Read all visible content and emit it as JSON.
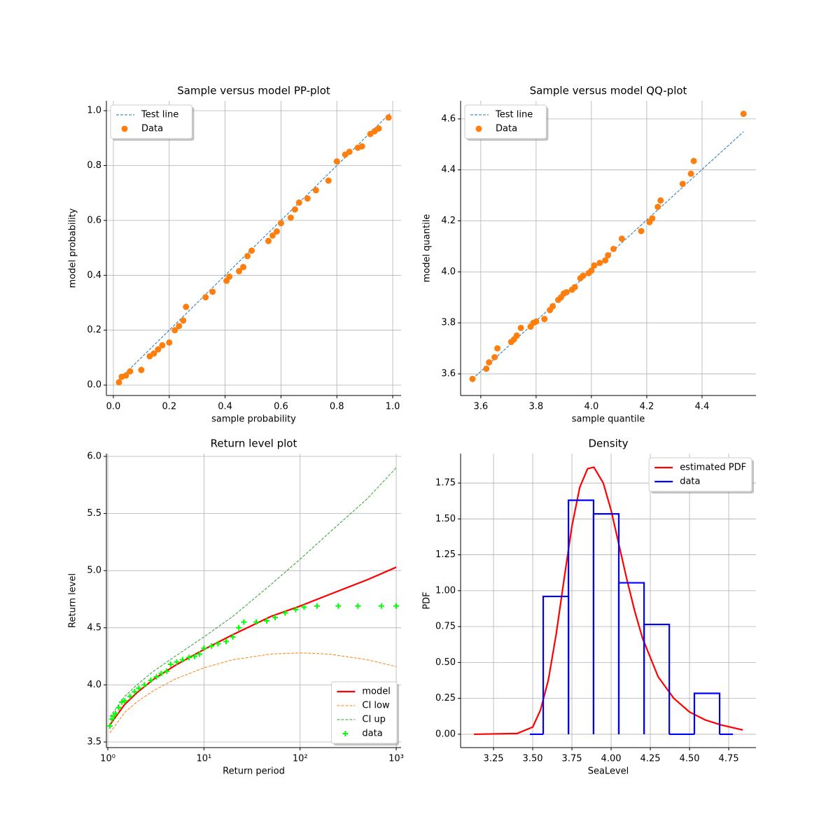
{
  "chart_data": [
    {
      "type": "scatter",
      "title": "Sample versus model PP-plot",
      "x_label": "sample probability",
      "y_label": "model probability",
      "xlim": [
        -0.025,
        1.03
      ],
      "ylim": [
        -0.038,
        1.036
      ],
      "xticks": [
        {
          "value": 0,
          "label": "0.0"
        },
        0.2,
        0.4,
        0.6,
        0.8,
        {
          "value": 1,
          "label": "1.0"
        }
      ],
      "yticks": [
        {
          "value": 0,
          "label": "0.0"
        },
        0.2,
        0.4,
        0.6,
        0.8,
        {
          "value": 1,
          "label": "1.0"
        }
      ],
      "grid": true,
      "legend": "upper left",
      "series": [
        {
          "name": "Test line",
          "color": "#1f77b4",
          "linestyle": "dashed",
          "x": [
            0.01,
            0.99
          ],
          "values": [
            0.01,
            0.99
          ]
        },
        {
          "name": "Data",
          "color": "#ff7f0e",
          "marker": "o",
          "x": [
            0.02,
            0.03,
            0.045,
            0.06,
            0.1,
            0.13,
            0.145,
            0.16,
            0.175,
            0.2,
            0.22,
            0.235,
            0.25,
            0.26,
            0.33,
            0.355,
            0.405,
            0.415,
            0.45,
            0.465,
            0.48,
            0.495,
            0.555,
            0.57,
            0.585,
            0.6,
            0.635,
            0.65,
            0.665,
            0.695,
            0.725,
            0.77,
            0.8,
            0.83,
            0.845,
            0.875,
            0.89,
            0.92,
            0.935,
            0.95,
            0.985
          ],
          "values": [
            0.01,
            0.03,
            0.035,
            0.05,
            0.055,
            0.105,
            0.115,
            0.13,
            0.145,
            0.155,
            0.2,
            0.215,
            0.235,
            0.285,
            0.32,
            0.34,
            0.38,
            0.395,
            0.415,
            0.43,
            0.47,
            0.49,
            0.525,
            0.545,
            0.56,
            0.59,
            0.61,
            0.64,
            0.665,
            0.68,
            0.71,
            0.745,
            0.815,
            0.84,
            0.85,
            0.865,
            0.87,
            0.915,
            0.925,
            0.935,
            0.975
          ]
        }
      ]
    },
    {
      "type": "scatter",
      "title": "Sample versus model QQ-plot",
      "x_label": "sample quantile",
      "y_label": "model quantile",
      "xlim": [
        3.527,
        4.595
      ],
      "ylim": [
        3.515,
        4.671
      ],
      "xticks": [
        3.6,
        3.8,
        {
          "value": 4,
          "label": "4.0"
        },
        4.2,
        4.4
      ],
      "yticks": [
        3.6,
        3.8,
        {
          "value": 4,
          "label": "4.0"
        },
        4.2,
        4.4,
        4.6
      ],
      "grid": true,
      "legend": "upper left",
      "series": [
        {
          "name": "Test line",
          "color": "#1f77b4",
          "linestyle": "dashed",
          "x": [
            3.57,
            4.55
          ],
          "values": [
            3.58,
            4.55
          ]
        },
        {
          "name": "Data",
          "color": "#ff7f0e",
          "marker": "o",
          "x": [
            3.57,
            3.62,
            3.63,
            3.65,
            3.66,
            3.71,
            3.72,
            3.73,
            3.745,
            3.78,
            3.79,
            3.8,
            3.83,
            3.85,
            3.86,
            3.88,
            3.89,
            3.9,
            3.91,
            3.93,
            3.94,
            3.96,
            3.97,
            3.99,
            4.0,
            4.01,
            4.03,
            4.05,
            4.06,
            4.08,
            4.11,
            4.18,
            4.21,
            4.22,
            4.24,
            4.25,
            4.33,
            4.36,
            4.37,
            4.55
          ],
          "values": [
            3.58,
            3.62,
            3.645,
            3.665,
            3.7,
            3.725,
            3.735,
            3.75,
            3.78,
            3.785,
            3.8,
            3.805,
            3.815,
            3.85,
            3.865,
            3.89,
            3.9,
            3.915,
            3.92,
            3.93,
            3.94,
            3.975,
            3.985,
            3.995,
            4.005,
            4.025,
            4.035,
            4.045,
            4.065,
            4.09,
            4.13,
            4.16,
            4.195,
            4.21,
            4.255,
            4.28,
            4.345,
            4.385,
            4.435,
            4.62
          ]
        }
      ]
    },
    {
      "type": "line",
      "title": "Return level plot",
      "x_label": "Return period",
      "y_label": "Return level",
      "xscale": "log",
      "xlim": [
        0.966,
        1124
      ],
      "ylim": [
        3.451,
        6.0245
      ],
      "xticks": [
        {
          "value": 1,
          "label": "10⁰"
        },
        {
          "value": 10,
          "label": "10¹"
        },
        {
          "value": 100,
          "label": "10²"
        },
        {
          "value": 1000,
          "label": "10³"
        }
      ],
      "yticks": [
        3.5,
        {
          "value": 4,
          "label": "4.0"
        },
        4.5,
        {
          "value": 5,
          "label": "5.0"
        },
        5.5,
        {
          "value": 6,
          "label": "6.0"
        }
      ],
      "grid": true,
      "legend": "lower right",
      "series": [
        {
          "name": "model",
          "color": "#ff0000",
          "linestyle": "solid",
          "linewidth": 2.2,
          "x": [
            1.05,
            1.5,
            2,
            3,
            5,
            10,
            20,
            50,
            100,
            200,
            500,
            1000
          ],
          "values": [
            3.65,
            3.83,
            3.93,
            4.05,
            4.17,
            4.31,
            4.44,
            4.6,
            4.69,
            4.79,
            4.92,
            5.03
          ]
        },
        {
          "name": "CI low",
          "color": "#ff7f0e",
          "linestyle": "dashed",
          "x": [
            1.05,
            1.5,
            2,
            3,
            5,
            10,
            20,
            50,
            100,
            200,
            500,
            1000
          ],
          "values": [
            3.58,
            3.76,
            3.85,
            3.95,
            4.05,
            4.15,
            4.22,
            4.27,
            4.28,
            4.27,
            4.22,
            4.16
          ]
        },
        {
          "name": "CI up",
          "color": "#2ca02c",
          "linestyle": "dashed",
          "x": [
            1.05,
            1.5,
            2,
            3,
            5,
            10,
            20,
            50,
            100,
            200,
            500,
            1000
          ],
          "values": [
            3.72,
            3.9,
            4.0,
            4.12,
            4.25,
            4.42,
            4.6,
            4.88,
            5.1,
            5.33,
            5.63,
            5.9
          ]
        },
        {
          "name": "data",
          "color": "#00ff00",
          "marker": "+",
          "x": [
            1.05,
            1.1,
            1.15,
            1.2,
            1.3,
            1.4,
            1.5,
            1.7,
            1.9,
            2.1,
            2.4,
            2.8,
            3.2,
            3.6,
            4.1,
            4.5,
            5.2,
            6,
            7,
            8,
            9,
            10,
            12,
            14,
            17,
            20,
            23,
            26,
            35,
            45,
            55,
            70,
            90,
            110,
            150,
            250,
            400,
            700,
            1000
          ],
          "values": [
            3.64,
            3.7,
            3.73,
            3.75,
            3.8,
            3.85,
            3.86,
            3.9,
            3.94,
            3.97,
            4.0,
            4.04,
            4.07,
            4.1,
            4.12,
            4.18,
            4.2,
            4.22,
            4.24,
            4.25,
            4.27,
            4.32,
            4.34,
            4.36,
            4.38,
            4.42,
            4.5,
            4.55,
            4.55,
            4.56,
            4.59,
            4.63,
            4.66,
            4.68,
            4.69,
            4.69,
            4.69,
            4.69,
            4.69
          ]
        }
      ]
    },
    {
      "type": "histogram",
      "title": "Density",
      "x_label": "SeaLevel",
      "y_label": "PDF",
      "xlim": [
        3.04,
        4.924
      ],
      "ylim": [
        -0.093,
        1.955
      ],
      "xticks": [
        3.25,
        {
          "value": 3.5,
          "label": "3.50"
        },
        3.75,
        {
          "value": 4,
          "label": "4.00"
        },
        4.25,
        {
          "value": 4.5,
          "label": "4.50"
        },
        4.75
      ],
      "yticks": [
        {
          "value": 0,
          "label": "0.00"
        },
        0.25,
        {
          "value": 0.5,
          "label": "0.50"
        },
        0.75,
        {
          "value": 1,
          "label": "1.00"
        },
        1.25,
        {
          "value": 1.5,
          "label": "1.50"
        },
        1.75
      ],
      "grid": true,
      "legend": "upper right",
      "series": [
        {
          "name": "estimated PDF",
          "color": "#ff0000",
          "linestyle": "solid",
          "linewidth": 2.2,
          "x": [
            3.125,
            3.4,
            3.5,
            3.55,
            3.6,
            3.65,
            3.7,
            3.75,
            3.8,
            3.85,
            3.89,
            3.95,
            4.0,
            4.05,
            4.1,
            4.15,
            4.2,
            4.3,
            4.4,
            4.5,
            4.6,
            4.7,
            4.84
          ],
          "values": [
            0,
            0.005,
            0.05,
            0.17,
            0.38,
            0.7,
            1.08,
            1.45,
            1.72,
            1.85,
            1.86,
            1.75,
            1.56,
            1.32,
            1.08,
            0.86,
            0.67,
            0.4,
            0.25,
            0.155,
            0.1,
            0.065,
            0.03
          ]
        },
        {
          "name": "data",
          "color": "#0000ff",
          "linewidth": 2.2,
          "bins": [
            3.482,
            3.567,
            3.728,
            3.888,
            4.049,
            4.21,
            4.371,
            4.531,
            4.692,
            4.777
          ],
          "values": [
            0,
            0.96,
            1.63,
            1.535,
            1.055,
            0.765,
            0,
            0.285,
            0
          ]
        }
      ]
    }
  ]
}
